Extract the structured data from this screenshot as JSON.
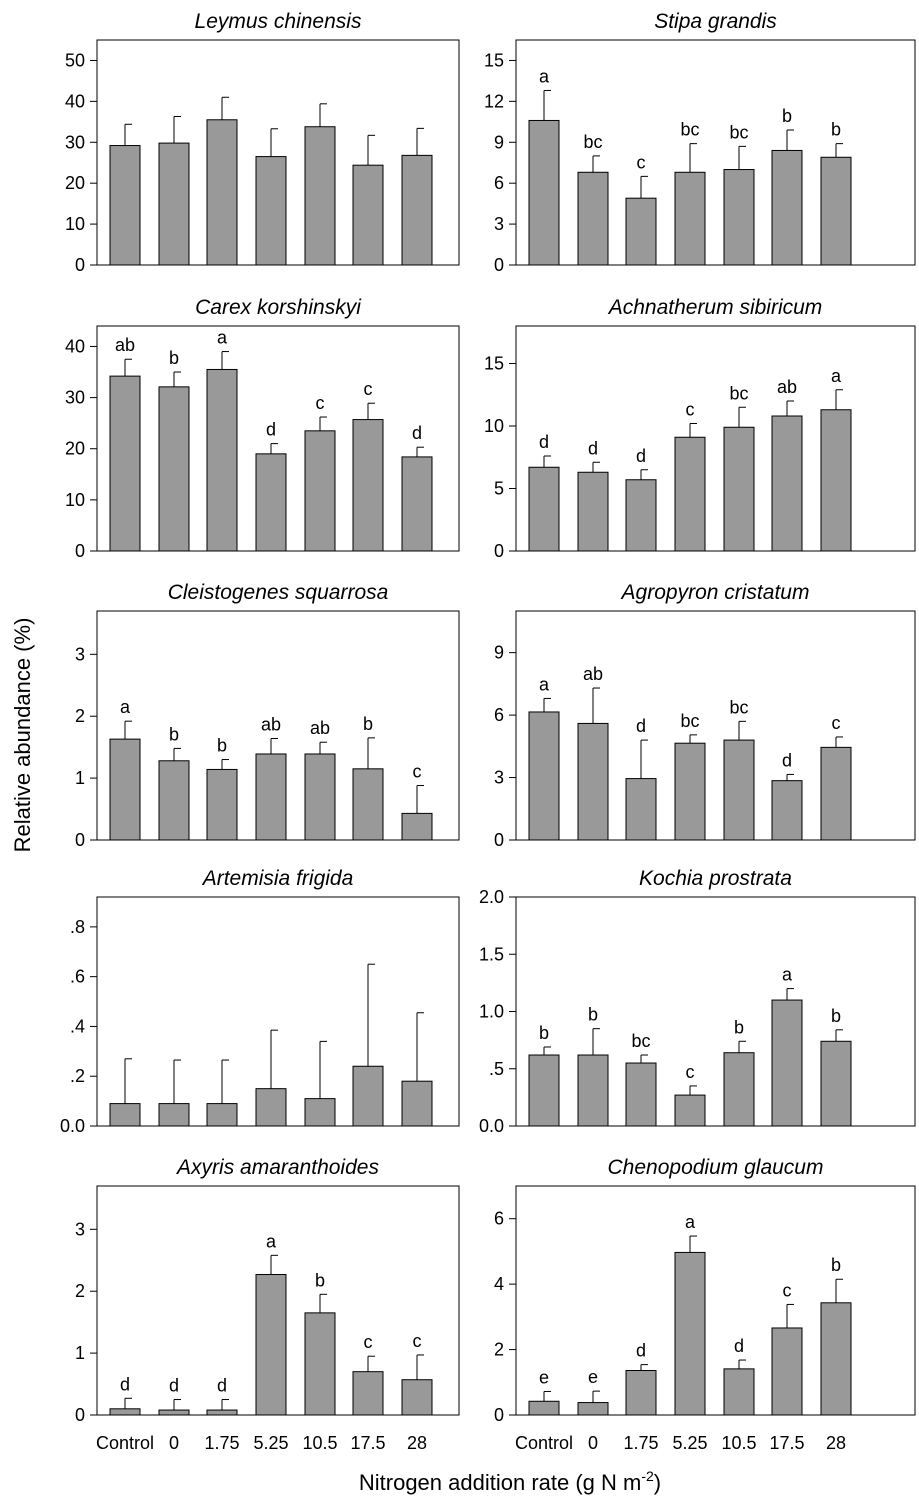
{
  "figure": {
    "ylabel": "Relative abundance (%)",
    "xlabel_main": "Nitrogen addition rate (g N m",
    "xlabel_sup": "-2",
    "xlabel_end": ")"
  },
  "chart_data": [
    {
      "type": "bar",
      "title": "Leymus chinensis",
      "categories": [
        "Control",
        "0",
        "1.75",
        "5.25",
        "10.5",
        "17.5",
        "28"
      ],
      "values": [
        29.2,
        29.8,
        35.5,
        26.5,
        33.8,
        24.4,
        26.8
      ],
      "errors": [
        5.2,
        6.5,
        5.5,
        6.8,
        5.6,
        7.3,
        6.6
      ],
      "labels": [
        "",
        "",
        "",
        "",
        "",
        "",
        ""
      ],
      "ylim": [
        0,
        55
      ],
      "yticks": [
        0,
        10,
        20,
        30,
        40,
        50
      ],
      "ytick_labels": [
        "0",
        "10",
        "20",
        "30",
        "40",
        "50"
      ]
    },
    {
      "type": "bar",
      "title": "Stipa grandis",
      "categories": [
        "Control",
        "0",
        "1.75",
        "5.25",
        "10.5",
        "17.5",
        "28"
      ],
      "values": [
        10.6,
        6.8,
        4.9,
        6.8,
        7.0,
        8.4,
        7.9
      ],
      "errors": [
        2.2,
        1.2,
        1.6,
        2.1,
        1.7,
        1.5,
        1.0
      ],
      "labels": [
        "a",
        "bc",
        "c",
        "bc",
        "bc",
        "b",
        "b"
      ],
      "ylim": [
        0,
        16.5
      ],
      "yticks": [
        0,
        3,
        6,
        9,
        12,
        15
      ],
      "ytick_labels": [
        "0",
        "3",
        "6",
        "9",
        "12",
        "15"
      ]
    },
    {
      "type": "bar",
      "title": "Carex korshinskyi",
      "categories": [
        "Control",
        "0",
        "1.75",
        "5.25",
        "10.5",
        "17.5",
        "28"
      ],
      "values": [
        34.2,
        32.1,
        35.5,
        19.0,
        23.5,
        25.7,
        18.4
      ],
      "errors": [
        3.3,
        2.9,
        3.5,
        2.0,
        2.7,
        3.2,
        1.9
      ],
      "labels": [
        "ab",
        "b",
        "a",
        "d",
        "c",
        "c",
        "d"
      ],
      "ylim": [
        0,
        44
      ],
      "yticks": [
        0,
        10,
        20,
        30,
        40
      ],
      "ytick_labels": [
        "0",
        "10",
        "20",
        "30",
        "40"
      ]
    },
    {
      "type": "bar",
      "title": "Achnatherum sibiricum",
      "categories": [
        "Control",
        "0",
        "1.75",
        "5.25",
        "10.5",
        "17.5",
        "28"
      ],
      "values": [
        6.7,
        6.3,
        5.7,
        9.1,
        9.9,
        10.8,
        11.3
      ],
      "errors": [
        0.9,
        0.8,
        0.8,
        1.1,
        1.6,
        1.2,
        1.6
      ],
      "labels": [
        "d",
        "d",
        "d",
        "c",
        "bc",
        "ab",
        "a"
      ],
      "ylim": [
        0,
        18
      ],
      "yticks": [
        0,
        5,
        10,
        15
      ],
      "ytick_labels": [
        "0",
        "5",
        "10",
        "15"
      ]
    },
    {
      "type": "bar",
      "title": "Cleistogenes squarrosa",
      "categories": [
        "Control",
        "0",
        "1.75",
        "5.25",
        "10.5",
        "17.5",
        "28"
      ],
      "values": [
        1.63,
        1.28,
        1.14,
        1.39,
        1.39,
        1.15,
        0.43
      ],
      "errors": [
        0.29,
        0.2,
        0.16,
        0.25,
        0.19,
        0.5,
        0.45
      ],
      "labels": [
        "a",
        "b",
        "b",
        "ab",
        "ab",
        "b",
        "c"
      ],
      "ylim": [
        0,
        3.7
      ],
      "yticks": [
        0,
        1,
        2,
        3
      ],
      "ytick_labels": [
        "0",
        "1",
        "2",
        "3"
      ]
    },
    {
      "type": "bar",
      "title": "Agropyron cristatum",
      "categories": [
        "Control",
        "0",
        "1.75",
        "5.25",
        "10.5",
        "17.5",
        "28"
      ],
      "values": [
        6.15,
        5.6,
        2.95,
        4.65,
        4.8,
        2.85,
        4.45
      ],
      "errors": [
        0.65,
        1.7,
        1.85,
        0.4,
        0.9,
        0.3,
        0.5
      ],
      "labels": [
        "a",
        "ab",
        "d",
        "bc",
        "bc",
        "d",
        "c"
      ],
      "ylim": [
        0,
        11
      ],
      "yticks": [
        0,
        3,
        6,
        9
      ],
      "ytick_labels": [
        "0",
        "3",
        "6",
        "9"
      ]
    },
    {
      "type": "bar",
      "title": "Artemisia frigida",
      "categories": [
        "Control",
        "0",
        "1.75",
        "5.25",
        "10.5",
        "17.5",
        "28"
      ],
      "values": [
        0.09,
        0.09,
        0.09,
        0.15,
        0.11,
        0.24,
        0.18
      ],
      "errors": [
        0.18,
        0.175,
        0.175,
        0.235,
        0.23,
        0.41,
        0.275
      ],
      "labels": [
        "",
        "",
        "",
        "",
        "",
        "",
        ""
      ],
      "ylim": [
        0,
        0.92
      ],
      "yticks": [
        0,
        0.2,
        0.4,
        0.6,
        0.8
      ],
      "ytick_labels": [
        "0.0",
        ".2",
        ".4",
        ".6",
        ".8"
      ]
    },
    {
      "type": "bar",
      "title": "Kochia prostrata",
      "categories": [
        "Control",
        "0",
        "1.75",
        "5.25",
        "10.5",
        "17.5",
        "28"
      ],
      "values": [
        0.62,
        0.62,
        0.55,
        0.27,
        0.64,
        1.1,
        0.74
      ],
      "errors": [
        0.07,
        0.23,
        0.07,
        0.08,
        0.1,
        0.1,
        0.1
      ],
      "labels": [
        "b",
        "b",
        "bc",
        "c",
        "b",
        "a",
        "b"
      ],
      "ylim": [
        0,
        2.0
      ],
      "yticks": [
        0,
        0.5,
        1.0,
        1.5,
        2.0
      ],
      "ytick_labels": [
        "0.0",
        ".5",
        "1.0",
        "1.5",
        "2.0"
      ]
    },
    {
      "type": "bar",
      "title": "Axyris amaranthoides",
      "categories": [
        "Control",
        "0",
        "1.75",
        "5.25",
        "10.5",
        "17.5",
        "28"
      ],
      "values": [
        0.1,
        0.08,
        0.08,
        2.27,
        1.65,
        0.7,
        0.57
      ],
      "errors": [
        0.17,
        0.17,
        0.17,
        0.31,
        0.3,
        0.25,
        0.4
      ],
      "labels": [
        "d",
        "d",
        "d",
        "a",
        "b",
        "c",
        "c"
      ],
      "ylim": [
        0,
        3.7
      ],
      "yticks": [
        0,
        1,
        2,
        3
      ],
      "ytick_labels": [
        "0",
        "1",
        "2",
        "3"
      ]
    },
    {
      "type": "bar",
      "title": "Chenopodium glaucum",
      "categories": [
        "Control",
        "0",
        "1.75",
        "5.25",
        "10.5",
        "17.5",
        "28"
      ],
      "values": [
        0.42,
        0.38,
        1.36,
        4.97,
        1.41,
        2.66,
        3.43
      ],
      "errors": [
        0.3,
        0.35,
        0.18,
        0.5,
        0.27,
        0.72,
        0.72
      ],
      "labels": [
        "e",
        "e",
        "d",
        "a",
        "d",
        "c",
        "b"
      ],
      "ylim": [
        0,
        7.0
      ],
      "yticks": [
        0,
        2,
        4,
        6
      ],
      "ytick_labels": [
        "0",
        "2",
        "4",
        "6"
      ]
    }
  ]
}
